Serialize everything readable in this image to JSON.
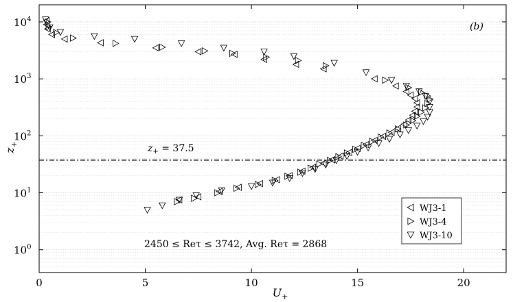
{
  "chart_data": {
    "type": "scatter",
    "panel_label": "(b)",
    "xlabel": "U+",
    "ylabel": "z+",
    "xlim": [
      0,
      22
    ],
    "ylim_log10": [
      -0.4,
      4.3
    ],
    "y_scale": "log",
    "grid": "horizontal minor log grid on",
    "x_ticks": [
      0,
      5,
      10,
      15,
      20
    ],
    "y_ticks": [
      1,
      10,
      100,
      1000,
      10000
    ],
    "x_tick_labels": [
      "0",
      "5",
      "10",
      "15",
      "20"
    ],
    "y_tick_labels": [
      {
        "base": "10",
        "exp": "0"
      },
      {
        "base": "10",
        "exp": "1"
      },
      {
        "base": "10",
        "exp": "2"
      },
      {
        "base": "10",
        "exp": "3"
      },
      {
        "base": "10",
        "exp": "4"
      }
    ],
    "reference_line": {
      "y": 37.5,
      "style": "dash-dot",
      "label": "z+ = 37.5"
    },
    "annotation": "2450 ≤ Reτ ≤ 3742, Avg. Reτ = 2868",
    "legend_placement": "bottom-right",
    "series": [
      {
        "name": "WJ3-1",
        "marker": "triangle-left",
        "points": [
          [
            6.6,
            7.5
          ],
          [
            7.5,
            8.5
          ],
          [
            8.5,
            10.5
          ],
          [
            9.4,
            12.5
          ],
          [
            10.4,
            14.5
          ],
          [
            11.2,
            17
          ],
          [
            11.8,
            20
          ],
          [
            12.4,
            24
          ],
          [
            12.9,
            28
          ],
          [
            13.4,
            33
          ],
          [
            13.8,
            38
          ],
          [
            14.2,
            44
          ],
          [
            14.6,
            51
          ],
          [
            15.0,
            60
          ],
          [
            15.4,
            70
          ],
          [
            15.8,
            83
          ],
          [
            16.2,
            98
          ],
          [
            16.6,
            115
          ],
          [
            16.9,
            135
          ],
          [
            17.2,
            160
          ],
          [
            17.4,
            190
          ],
          [
            17.6,
            230
          ],
          [
            17.7,
            270
          ],
          [
            17.8,
            320
          ],
          [
            17.8,
            380
          ],
          [
            17.7,
            450
          ],
          [
            17.5,
            520
          ],
          [
            17.3,
            600
          ],
          [
            16.8,
            750
          ],
          [
            15.8,
            1000
          ],
          [
            13.4,
            1500
          ],
          [
            12.1,
            1800
          ],
          [
            10.6,
            2200
          ],
          [
            9.2,
            2700
          ],
          [
            7.5,
            3000
          ],
          [
            5.5,
            3500
          ],
          [
            2.9,
            4300
          ],
          [
            1.2,
            5000
          ],
          [
            0.6,
            6000
          ],
          [
            0.4,
            7500
          ],
          [
            0.35,
            9000
          ],
          [
            0.35,
            10500
          ]
        ]
      },
      {
        "name": "WJ3-4",
        "marker": "triangle-right",
        "points": [
          [
            6.5,
            7.0
          ],
          [
            7.3,
            8.0
          ],
          [
            8.4,
            10.0
          ],
          [
            9.3,
            12.0
          ],
          [
            10.3,
            14.0
          ],
          [
            11.1,
            16.5
          ],
          [
            11.7,
            19.5
          ],
          [
            12.3,
            23
          ],
          [
            12.8,
            27
          ],
          [
            13.2,
            32
          ],
          [
            13.7,
            37
          ],
          [
            14.1,
            43
          ],
          [
            14.5,
            50
          ],
          [
            14.9,
            58
          ],
          [
            15.3,
            68
          ],
          [
            15.7,
            80
          ],
          [
            16.1,
            95
          ],
          [
            16.5,
            112
          ],
          [
            16.9,
            132
          ],
          [
            17.3,
            155
          ],
          [
            17.6,
            185
          ],
          [
            17.8,
            220
          ],
          [
            18.0,
            260
          ],
          [
            18.2,
            310
          ],
          [
            18.3,
            370
          ],
          [
            18.4,
            440
          ],
          [
            18.3,
            500
          ],
          [
            18.0,
            580
          ],
          [
            17.4,
            700
          ],
          [
            16.3,
            950
          ],
          [
            13.5,
            1700
          ],
          [
            12.2,
            2100
          ],
          [
            10.7,
            2400
          ],
          [
            9.1,
            2800
          ],
          [
            7.8,
            3100
          ],
          [
            5.8,
            3600
          ],
          [
            3.6,
            4200
          ],
          [
            1.6,
            5200
          ],
          [
            0.8,
            6500
          ],
          [
            0.45,
            8200
          ],
          [
            0.4,
            10000
          ]
        ]
      },
      {
        "name": "WJ3-10",
        "marker": "triangle-down",
        "points": [
          [
            5.1,
            5.0
          ],
          [
            5.8,
            6.0
          ],
          [
            6.6,
            7.5
          ],
          [
            7.4,
            9.0
          ],
          [
            8.6,
            11.0
          ],
          [
            10.0,
            13.0
          ],
          [
            11.0,
            15.0
          ],
          [
            11.8,
            18.0
          ],
          [
            12.4,
            22
          ],
          [
            13.0,
            26
          ],
          [
            13.5,
            31
          ],
          [
            14.0,
            37
          ],
          [
            14.5,
            44
          ],
          [
            15.0,
            52
          ],
          [
            15.5,
            62
          ],
          [
            16.0,
            74
          ],
          [
            16.5,
            88
          ],
          [
            17.0,
            105
          ],
          [
            17.4,
            125
          ],
          [
            17.8,
            150
          ],
          [
            18.1,
            180
          ],
          [
            18.3,
            215
          ],
          [
            18.4,
            260
          ],
          [
            18.4,
            320
          ],
          [
            18.4,
            400
          ],
          [
            18.2,
            500
          ],
          [
            17.9,
            600
          ],
          [
            17.3,
            750
          ],
          [
            16.6,
            950
          ],
          [
            15.4,
            1300
          ],
          [
            13.9,
            1900
          ],
          [
            12.0,
            2500
          ],
          [
            10.6,
            3000
          ],
          [
            8.7,
            3500
          ],
          [
            6.7,
            4200
          ],
          [
            4.5,
            5000
          ],
          [
            2.6,
            5600
          ],
          [
            1.0,
            6600
          ],
          [
            0.5,
            8000
          ],
          [
            0.3,
            11000
          ]
        ]
      }
    ]
  }
}
